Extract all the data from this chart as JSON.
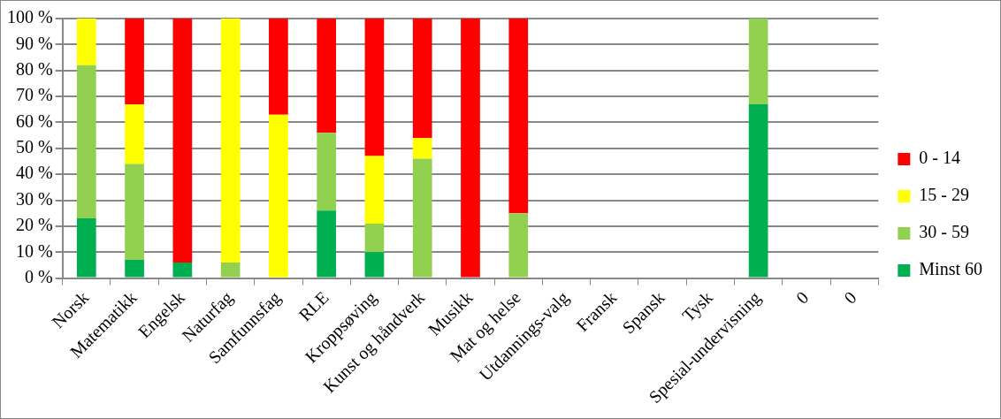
{
  "chart_data": {
    "type": "bar",
    "stacked": true,
    "categories": [
      "Norsk",
      "Matematikk",
      "Engelsk",
      "Naturfag",
      "Samfunnsfag",
      "RLE",
      "Kroppsøving",
      "Kunst og håndverk",
      "Musikk",
      "Mat og helse",
      "Utdannings-valg",
      "Fransk",
      "Spansk",
      "Tysk",
      "Spesial-undervisning",
      "0",
      "0"
    ],
    "series": [
      {
        "name": "Minst 60",
        "color": "#00b050",
        "values": [
          23,
          7,
          6,
          0,
          0,
          26,
          10,
          0,
          0,
          0,
          0,
          0,
          0,
          0,
          67,
          0,
          0
        ]
      },
      {
        "name": "30 - 59",
        "color": "#92d050",
        "values": [
          59,
          37,
          0,
          6,
          0,
          30,
          11,
          46,
          0,
          25,
          0,
          0,
          0,
          0,
          33,
          0,
          0
        ]
      },
      {
        "name": "15 - 29",
        "color": "#ffff00",
        "values": [
          18,
          23,
          0,
          94,
          63,
          0,
          26,
          8,
          0,
          0,
          0,
          0,
          0,
          0,
          0,
          0,
          0
        ]
      },
      {
        "name": "0 - 14",
        "color": "#ff0000",
        "values": [
          0,
          33,
          94,
          0,
          37,
          44,
          53,
          46,
          100,
          75,
          0,
          0,
          0,
          0,
          0,
          0,
          0
        ]
      }
    ],
    "ylim": [
      0,
      100
    ],
    "yticks": [
      {
        "value": 0,
        "label": "0 %"
      },
      {
        "value": 10,
        "label": "10 %"
      },
      {
        "value": 20,
        "label": "20 %"
      },
      {
        "value": 30,
        "label": "30 %"
      },
      {
        "value": 40,
        "label": "40 %"
      },
      {
        "value": 50,
        "label": "50 %"
      },
      {
        "value": 60,
        "label": "60 %"
      },
      {
        "value": 70,
        "label": "70 %"
      },
      {
        "value": 80,
        "label": "80 %"
      },
      {
        "value": 90,
        "label": "90 %"
      },
      {
        "value": 100,
        "label": "100 %"
      }
    ],
    "grid": "y",
    "legend": "right"
  }
}
